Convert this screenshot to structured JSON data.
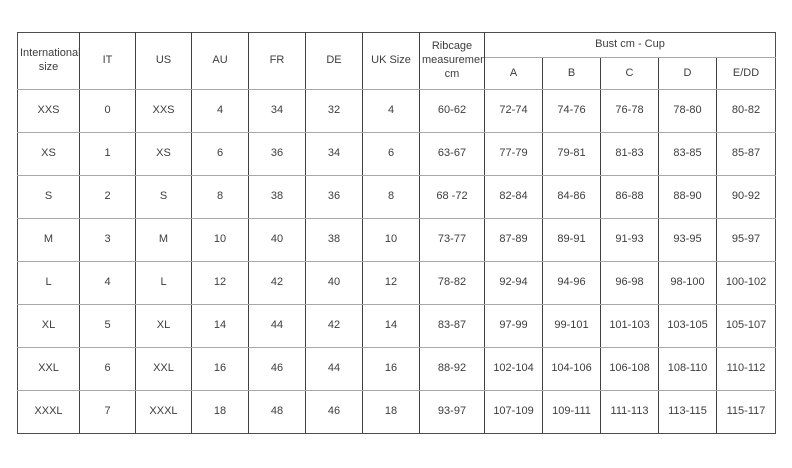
{
  "page": {
    "background": "#ffffff"
  },
  "table": {
    "name": "size-conversion-chart",
    "columns": [
      "International size",
      "IT",
      "US",
      "AU",
      "FR",
      "DE",
      "UK Size",
      "Ribcage measurements cm"
    ],
    "cup_group_label": "Bust cm - Cup",
    "cup_columns": [
      "A",
      "B",
      "C",
      "D",
      "E/DD"
    ],
    "rows": [
      [
        "XXS",
        "0",
        "XXS",
        "4",
        "34",
        "32",
        "4",
        "60-62",
        "72-74",
        "74-76",
        "76-78",
        "78-80",
        "80-82"
      ],
      [
        "XS",
        "1",
        "XS",
        "6",
        "36",
        "34",
        "6",
        "63-67",
        "77-79",
        "79-81",
        "81-83",
        "83-85",
        "85-87"
      ],
      [
        "S",
        "2",
        "S",
        "8",
        "38",
        "36",
        "8",
        "68 -72",
        "82-84",
        "84-86",
        "86-88",
        "88-90",
        "90-92"
      ],
      [
        "M",
        "3",
        "M",
        "10",
        "40",
        "38",
        "10",
        "73-77",
        "87-89",
        "89-91",
        "91-93",
        "93-95",
        "95-97"
      ],
      [
        "L",
        "4",
        "L",
        "12",
        "42",
        "40",
        "12",
        "78-82",
        "92-94",
        "94-96",
        "96-98",
        "98-100",
        "100-102"
      ],
      [
        "XL",
        "5",
        "XL",
        "14",
        "44",
        "42",
        "14",
        "83-87",
        "97-99",
        "99-101",
        "101-103",
        "103-105",
        "105-107"
      ],
      [
        "XXL",
        "6",
        "XXL",
        "16",
        "46",
        "44",
        "16",
        "88-92",
        "102-104",
        "104-106",
        "106-108",
        "108-110",
        "110-112"
      ],
      [
        "XXXL",
        "7",
        "XXXL",
        "18",
        "48",
        "46",
        "18",
        "93-97",
        "107-109",
        "109-111",
        "111-113",
        "113-115",
        "115-117"
      ]
    ],
    "colors": {
      "vertical_line": "#404040",
      "horizontal_line": "#a8a8a8",
      "outer_border": "#4d4d4d",
      "text": "#3d3d3d",
      "background": "#ffffff"
    }
  },
  "chart_data": {
    "type": "table",
    "title": "",
    "columns": [
      "International size",
      "IT",
      "US",
      "AU",
      "FR",
      "DE",
      "UK Size",
      "Ribcage measurements cm",
      "Bust cm - Cup A",
      "Bust cm - Cup B",
      "Bust cm - Cup C",
      "Bust cm - Cup D",
      "Bust cm - Cup E/DD"
    ],
    "rows": [
      [
        "XXS",
        "0",
        "XXS",
        "4",
        "34",
        "32",
        "4",
        "60-62",
        "72-74",
        "74-76",
        "76-78",
        "78-80",
        "80-82"
      ],
      [
        "XS",
        "1",
        "XS",
        "6",
        "36",
        "34",
        "6",
        "63-67",
        "77-79",
        "79-81",
        "81-83",
        "83-85",
        "85-87"
      ],
      [
        "S",
        "2",
        "S",
        "8",
        "38",
        "36",
        "8",
        "68 -72",
        "82-84",
        "84-86",
        "86-88",
        "88-90",
        "90-92"
      ],
      [
        "M",
        "3",
        "M",
        "10",
        "40",
        "38",
        "10",
        "73-77",
        "87-89",
        "89-91",
        "91-93",
        "93-95",
        "95-97"
      ],
      [
        "L",
        "4",
        "L",
        "12",
        "42",
        "40",
        "12",
        "78-82",
        "92-94",
        "94-96",
        "96-98",
        "98-100",
        "100-102"
      ],
      [
        "XL",
        "5",
        "XL",
        "14",
        "44",
        "42",
        "14",
        "83-87",
        "97-99",
        "99-101",
        "101-103",
        "103-105",
        "105-107"
      ],
      [
        "XXL",
        "6",
        "XXL",
        "16",
        "46",
        "44",
        "16",
        "88-92",
        "102-104",
        "104-106",
        "106-108",
        "108-110",
        "110-112"
      ],
      [
        "XXXL",
        "7",
        "XXXL",
        "18",
        "48",
        "46",
        "18",
        "93-97",
        "107-109",
        "109-111",
        "111-113",
        "113-115",
        "115-117"
      ]
    ]
  }
}
